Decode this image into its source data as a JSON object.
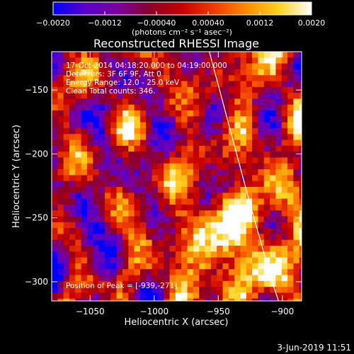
{
  "footer": {
    "timestamp": "3-Jun-2019 11:51"
  },
  "chart_data": {
    "type": "heatmap",
    "title": "Reconstructed RHESSI Image",
    "xlabel": "Heliocentric X (arcsec)",
    "ylabel": "Heliocentric Y (arcsec)",
    "xlim": [
      -1080,
      -885
    ],
    "ylim": [
      -315,
      -120
    ],
    "x_ticks": [
      {
        "value": -1050,
        "label": "−1050"
      },
      {
        "value": -1000,
        "label": "−1000"
      },
      {
        "value": -950,
        "label": "−950"
      },
      {
        "value": -900,
        "label": "−900"
      }
    ],
    "y_ticks": [
      {
        "value": -150,
        "label": "−150"
      },
      {
        "value": -200,
        "label": "−200"
      },
      {
        "value": -250,
        "label": "−250"
      },
      {
        "value": -300,
        "label": "−300"
      }
    ],
    "colorbar": {
      "range": [
        -0.002,
        0.002
      ],
      "unit_label": "(photons cm⁻² s⁻¹ asec⁻²)",
      "ticks": [
        {
          "value": -0.002,
          "label": "−0.0020"
        },
        {
          "value": -0.0012,
          "label": "−0.0012"
        },
        {
          "value": -0.0004,
          "label": "−0.00040"
        },
        {
          "value": 0.0004,
          "label": "0.00040"
        },
        {
          "value": 0.0012,
          "label": "0.0012"
        },
        {
          "value": 0.002,
          "label": "0.0020"
        }
      ],
      "colors": [
        "#0000ff",
        "#5a00c8",
        "#7a00a0",
        "#8c0028",
        "#c80000",
        "#f03c00",
        "#ff8c00",
        "#ffd21e",
        "#ffffff"
      ]
    },
    "annotations": [
      "17-Oct-2014 04:18:20.000 to 04:19:00.000",
      "Detectors: 3F 6F 9F, Att 0",
      "Energy Range: 12.0 - 25.0 keV",
      "Clean     Total counts: 346."
    ],
    "peak_label": "Position of Peak = [-939,-271]",
    "peak": {
      "x": -939,
      "y": -271
    },
    "limb_arc": [
      [
        -957,
        -120
      ],
      [
        -941,
        -180
      ],
      [
        -925,
        -240
      ],
      [
        -908,
        -300
      ],
      [
        -903,
        -315
      ]
    ]
  }
}
